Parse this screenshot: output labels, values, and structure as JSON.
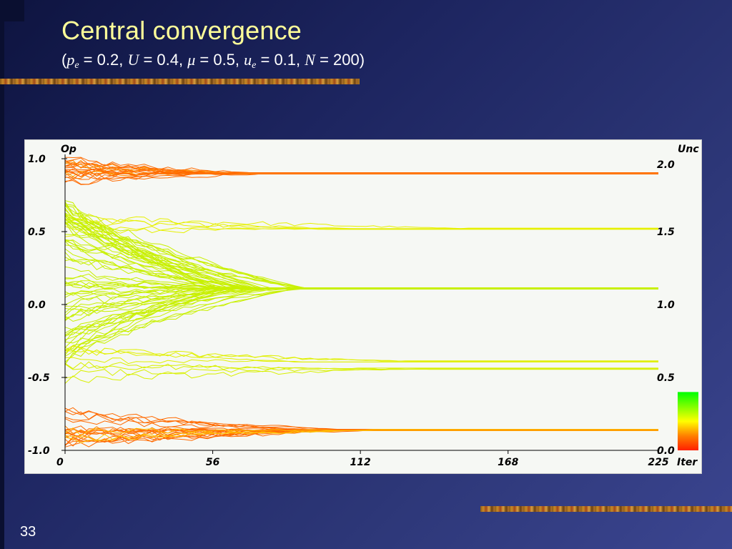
{
  "slide": {
    "title": "Central convergence",
    "params": [
      {
        "sym": "p",
        "sub": "e",
        "value": "0.2"
      },
      {
        "sym": "U",
        "sub": "",
        "value": "0.4"
      },
      {
        "sym": "μ",
        "sub": "",
        "value": "0.5"
      },
      {
        "sym": "u",
        "sub": "e",
        "value": "0.1"
      },
      {
        "sym": "N",
        "sub": "",
        "value": "200"
      }
    ],
    "page_number": "33"
  },
  "colors": {
    "background": "#1d2560",
    "title": "#ffff99",
    "extreme_trajectory": "#ff6a00",
    "moderate_trajectory": "#c8f000",
    "panel": "#f6f8f4"
  },
  "chart_data": {
    "type": "line",
    "title": "",
    "xlabel": "Iter",
    "ylabel": "Op",
    "y2label": "Unc",
    "xlim": [
      0,
      225
    ],
    "ylim": [
      -1.0,
      1.0
    ],
    "x_ticks": [
      "0",
      "56",
      "112",
      "168",
      "225"
    ],
    "y_ticks": [
      "1.0",
      "0.5",
      "0.0",
      "-0.5",
      "-1.0"
    ],
    "y2_ticks": [
      "2.0",
      "1.5",
      "1.0",
      "0.5",
      "0.0"
    ],
    "y2lim": [
      0.0,
      2.0
    ],
    "colorbar": {
      "min": 0.0,
      "max": 0.4,
      "colors": [
        "#ff2000",
        "#ff8000",
        "#ffff00",
        "#80ff00",
        "#00ff00"
      ]
    },
    "clusters": [
      {
        "name": "",
        "final_opinion": 0.9,
        "converge_iter": 80,
        "start_min": 0.82,
        "start_max": 1.0,
        "count": 22,
        "color": "#ff6a00",
        "uncertainty": 0.2
      },
      {
        "name": "",
        "final_opinion": 0.52,
        "converge_iter": 160,
        "start_min": 0.45,
        "start_max": 0.62,
        "count": 5,
        "color": "#e6f000",
        "uncertainty": 0.4
      },
      {
        "name": "",
        "final_opinion": 0.11,
        "converge_iter": 95,
        "start_min": -0.4,
        "start_max": 0.75,
        "count": 70,
        "color": "#c8f000",
        "uncertainty": 0.4
      },
      {
        "name": "",
        "final_opinion": -0.39,
        "converge_iter": 150,
        "start_min": -0.55,
        "start_max": -0.3,
        "count": 4,
        "color": "#e0f000",
        "uncertainty": 0.4
      },
      {
        "name": "",
        "final_opinion": -0.44,
        "converge_iter": 140,
        "start_min": -0.55,
        "start_max": -0.38,
        "count": 4,
        "color": "#d8f000",
        "uncertainty": 0.4
      },
      {
        "name": "",
        "final_opinion": -0.86,
        "converge_iter": 120,
        "start_min": -0.98,
        "start_max": -0.72,
        "count": 22,
        "color": "#ff6a00",
        "uncertainty": 0.2
      }
    ]
  }
}
